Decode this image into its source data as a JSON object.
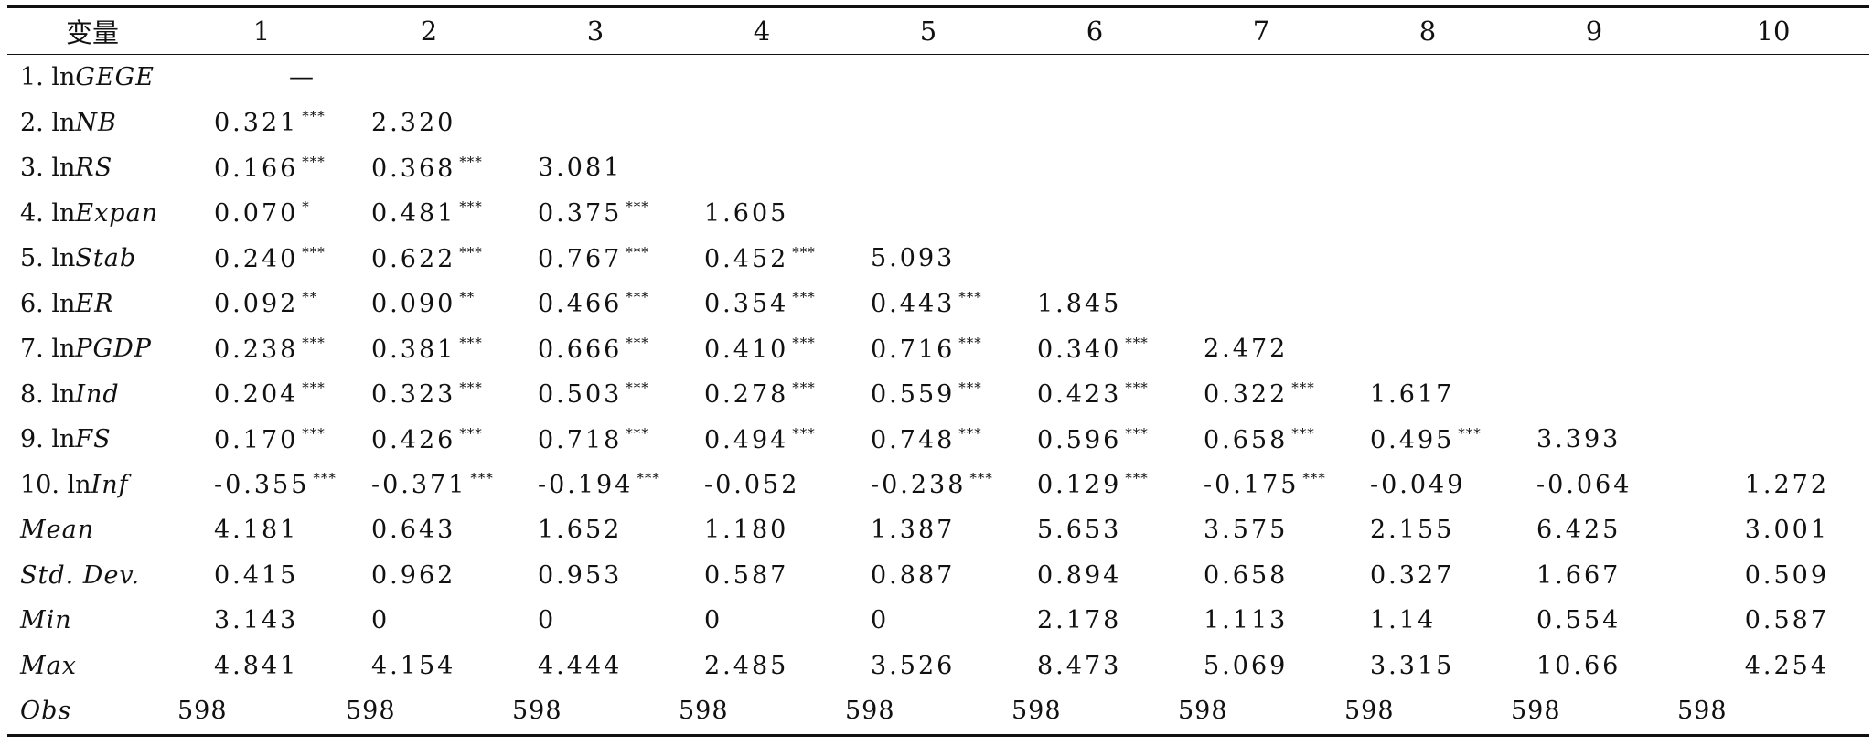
{
  "table": {
    "columns": [
      "变量",
      "1",
      "2",
      "3",
      "4",
      "5",
      "6",
      "7",
      "8",
      "9",
      "10"
    ],
    "rows": [
      {
        "prefix": "1. ln",
        "var": "GEGE",
        "cells": [
          {
            "v": "—",
            "s": ""
          }
        ]
      },
      {
        "prefix": "2. ln",
        "var": "NB",
        "cells": [
          {
            "v": "0.321",
            "s": "***"
          },
          {
            "v": "2.320",
            "s": ""
          }
        ]
      },
      {
        "prefix": "3. ln",
        "var": "RS",
        "cells": [
          {
            "v": "0.166",
            "s": "***"
          },
          {
            "v": "0.368",
            "s": "***"
          },
          {
            "v": "3.081",
            "s": ""
          }
        ]
      },
      {
        "prefix": "4. ln",
        "var": "Expan",
        "cells": [
          {
            "v": "0.070",
            "s": "*"
          },
          {
            "v": "0.481",
            "s": "***"
          },
          {
            "v": "0.375",
            "s": "***"
          },
          {
            "v": "1.605",
            "s": ""
          }
        ]
      },
      {
        "prefix": "5. ln",
        "var": "Stab",
        "cells": [
          {
            "v": "0.240",
            "s": "***"
          },
          {
            "v": "0.622",
            "s": "***"
          },
          {
            "v": "0.767",
            "s": "***"
          },
          {
            "v": "0.452",
            "s": "***"
          },
          {
            "v": "5.093",
            "s": ""
          }
        ]
      },
      {
        "prefix": "6. ln",
        "var": "ER",
        "cells": [
          {
            "v": "0.092",
            "s": "**"
          },
          {
            "v": "0.090",
            "s": "**"
          },
          {
            "v": "0.466",
            "s": "***"
          },
          {
            "v": "0.354",
            "s": "***"
          },
          {
            "v": "0.443",
            "s": "***"
          },
          {
            "v": "1.845",
            "s": ""
          }
        ]
      },
      {
        "prefix": "7. ln",
        "var": "PGDP",
        "cells": [
          {
            "v": "0.238",
            "s": "***"
          },
          {
            "v": "0.381",
            "s": "***"
          },
          {
            "v": "0.666",
            "s": "***"
          },
          {
            "v": "0.410",
            "s": "***"
          },
          {
            "v": "0.716",
            "s": "***"
          },
          {
            "v": "0.340",
            "s": "***"
          },
          {
            "v": "2.472",
            "s": ""
          }
        ]
      },
      {
        "prefix": "8. ln",
        "var": "Ind",
        "cells": [
          {
            "v": "0.204",
            "s": "***"
          },
          {
            "v": "0.323",
            "s": "***"
          },
          {
            "v": "0.503",
            "s": "***"
          },
          {
            "v": "0.278",
            "s": "***"
          },
          {
            "v": "0.559",
            "s": "***"
          },
          {
            "v": "0.423",
            "s": "***"
          },
          {
            "v": "0.322",
            "s": "***"
          },
          {
            "v": "1.617",
            "s": ""
          }
        ]
      },
      {
        "prefix": "9. ln",
        "var": "FS",
        "cells": [
          {
            "v": "0.170",
            "s": "***"
          },
          {
            "v": "0.426",
            "s": "***"
          },
          {
            "v": "0.718",
            "s": "***"
          },
          {
            "v": "0.494",
            "s": "***"
          },
          {
            "v": "0.748",
            "s": "***"
          },
          {
            "v": "0.596",
            "s": "***"
          },
          {
            "v": "0.658",
            "s": "***"
          },
          {
            "v": "0.495",
            "s": "***"
          },
          {
            "v": "3.393",
            "s": ""
          }
        ]
      },
      {
        "prefix": "10. ln",
        "var": "Inf",
        "cells": [
          {
            "v": "-0.355",
            "s": "***"
          },
          {
            "v": "-0.371",
            "s": "***"
          },
          {
            "v": "-0.194",
            "s": "***"
          },
          {
            "v": "-0.052",
            "s": ""
          },
          {
            "v": "-0.238",
            "s": "***"
          },
          {
            "v": "0.129",
            "s": "***"
          },
          {
            "v": "-0.175",
            "s": "***"
          },
          {
            "v": "-0.049",
            "s": ""
          },
          {
            "v": "-0.064",
            "s": ""
          },
          {
            "v": "1.272",
            "s": ""
          }
        ]
      },
      {
        "prefix": "",
        "var": "Mean",
        "cells": [
          {
            "v": "4.181",
            "s": ""
          },
          {
            "v": "0.643",
            "s": ""
          },
          {
            "v": "1.652",
            "s": ""
          },
          {
            "v": "1.180",
            "s": ""
          },
          {
            "v": "1.387",
            "s": ""
          },
          {
            "v": "5.653",
            "s": ""
          },
          {
            "v": "3.575",
            "s": ""
          },
          {
            "v": "2.155",
            "s": ""
          },
          {
            "v": "6.425",
            "s": ""
          },
          {
            "v": "3.001",
            "s": ""
          }
        ]
      },
      {
        "prefix": "",
        "var": "Std. Dev.",
        "cells": [
          {
            "v": "0.415",
            "s": ""
          },
          {
            "v": "0.962",
            "s": ""
          },
          {
            "v": "0.953",
            "s": ""
          },
          {
            "v": "0.587",
            "s": ""
          },
          {
            "v": "0.887",
            "s": ""
          },
          {
            "v": "0.894",
            "s": ""
          },
          {
            "v": "0.658",
            "s": ""
          },
          {
            "v": "0.327",
            "s": ""
          },
          {
            "v": "1.667",
            "s": ""
          },
          {
            "v": "0.509",
            "s": ""
          }
        ]
      },
      {
        "prefix": "",
        "var": "Min",
        "cells": [
          {
            "v": "3.143",
            "s": ""
          },
          {
            "v": "0",
            "s": ""
          },
          {
            "v": "0",
            "s": ""
          },
          {
            "v": "0",
            "s": ""
          },
          {
            "v": "0",
            "s": ""
          },
          {
            "v": "2.178",
            "s": ""
          },
          {
            "v": "1.113",
            "s": ""
          },
          {
            "v": "1.14",
            "s": ""
          },
          {
            "v": "0.554",
            "s": ""
          },
          {
            "v": "0.587",
            "s": ""
          }
        ]
      },
      {
        "prefix": "",
        "var": "Max",
        "cells": [
          {
            "v": "4.841",
            "s": ""
          },
          {
            "v": "4.154",
            "s": ""
          },
          {
            "v": "4.444",
            "s": ""
          },
          {
            "v": "2.485",
            "s": ""
          },
          {
            "v": "3.526",
            "s": ""
          },
          {
            "v": "8.473",
            "s": ""
          },
          {
            "v": "5.069",
            "s": ""
          },
          {
            "v": "3.315",
            "s": ""
          },
          {
            "v": "10.66",
            "s": ""
          },
          {
            "v": "4.254",
            "s": ""
          }
        ]
      },
      {
        "prefix": "",
        "var": "Obs",
        "cells": [
          {
            "v": "598",
            "s": ""
          },
          {
            "v": "598",
            "s": ""
          },
          {
            "v": "598",
            "s": ""
          },
          {
            "v": "598",
            "s": ""
          },
          {
            "v": "598",
            "s": ""
          },
          {
            "v": "598",
            "s": ""
          },
          {
            "v": "598",
            "s": ""
          },
          {
            "v": "598",
            "s": ""
          },
          {
            "v": "598",
            "s": ""
          },
          {
            "v": "598",
            "s": ""
          }
        ]
      }
    ]
  }
}
